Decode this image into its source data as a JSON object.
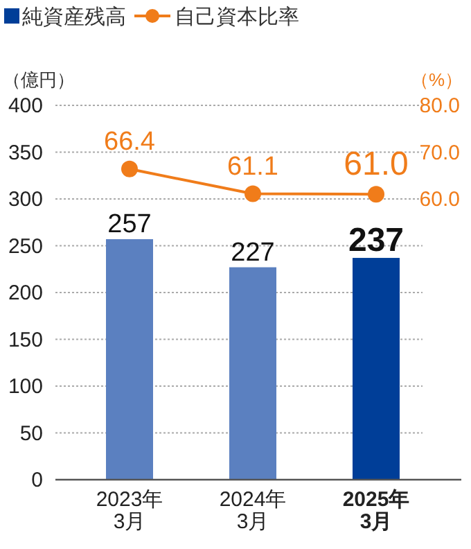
{
  "chart_data": {
    "type": "bar",
    "ylabel": "（億円）",
    "y2label": "（%）",
    "categories": [
      "2023年3月",
      "2024年3月",
      "2025年3月"
    ],
    "ylim": [
      0,
      400
    ],
    "yticks": [
      0,
      50,
      100,
      150,
      200,
      250,
      300,
      350,
      400
    ],
    "y2lim": [
      0,
      80
    ],
    "y2ticks": [
      {
        "value": 60,
        "label": "60.0"
      },
      {
        "value": 70,
        "label": "70.0"
      },
      {
        "value": 80,
        "label": "80.0"
      }
    ],
    "grid": "y",
    "legend": "top left",
    "marker": "circle",
    "series": [
      {
        "name": "純資産残高",
        "colors": [
          "#5b80c0",
          "#5b80c0",
          "#003e98"
        ],
        "color": "#003e98",
        "values": [
          257,
          227,
          237
        ],
        "value_labels": [
          "257",
          "227",
          "237"
        ]
      },
      {
        "name": "自己資本比率",
        "type": "line",
        "axis": "y2",
        "color": "#f07c1a",
        "values": [
          66.4,
          61.1,
          61.0
        ],
        "value_labels": [
          "66.4",
          "61.1",
          "61.0"
        ]
      }
    ]
  }
}
